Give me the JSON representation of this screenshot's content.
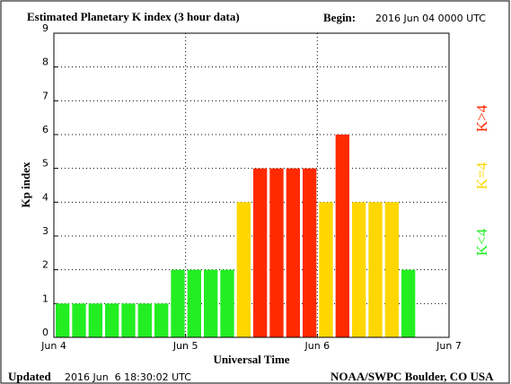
{
  "chart_data": {
    "type": "bar",
    "title": "Estimated Planetary K index (3 hour data)",
    "begin_label": "Begin:",
    "begin_value": "2016 Jun 04 0000 UTC",
    "y_label": "Kp index",
    "x_label": "Universal Time",
    "updated_label": "Updated",
    "updated_value": "2016 Jun  6 18:30:02 UTC",
    "source": "NOAA/SWPC Boulder, CO USA",
    "x": [
      0,
      3,
      6,
      9,
      12,
      15,
      18,
      21,
      24,
      27,
      30,
      33,
      36,
      39,
      42,
      45,
      48,
      51,
      54,
      57,
      60,
      63
    ],
    "values": [
      1,
      1,
      1,
      1,
      1,
      1,
      1,
      2,
      2,
      2,
      2,
      4,
      5,
      5,
      5,
      5,
      4,
      6,
      4,
      4,
      4,
      2
    ],
    "bar_width": 3,
    "xlim": [
      0,
      72
    ],
    "xticks": [
      {
        "value": 0,
        "label": "Jun 4"
      },
      {
        "value": 24,
        "label": "Jun 5"
      },
      {
        "value": 48,
        "label": "Jun 6"
      },
      {
        "value": 72,
        "label": "Jun 7"
      }
    ],
    "ylim": [
      0,
      9
    ],
    "yticks": [
      0,
      1,
      2,
      3,
      4,
      5,
      6,
      7,
      8,
      9
    ],
    "grid": true,
    "threshold": 4,
    "legend": [
      {
        "name": "K<4",
        "color": "#22ee22"
      },
      {
        "name": "K=4",
        "color": "#ffd700"
      },
      {
        "name": "K>4",
        "color": "#ff2a00"
      }
    ]
  }
}
